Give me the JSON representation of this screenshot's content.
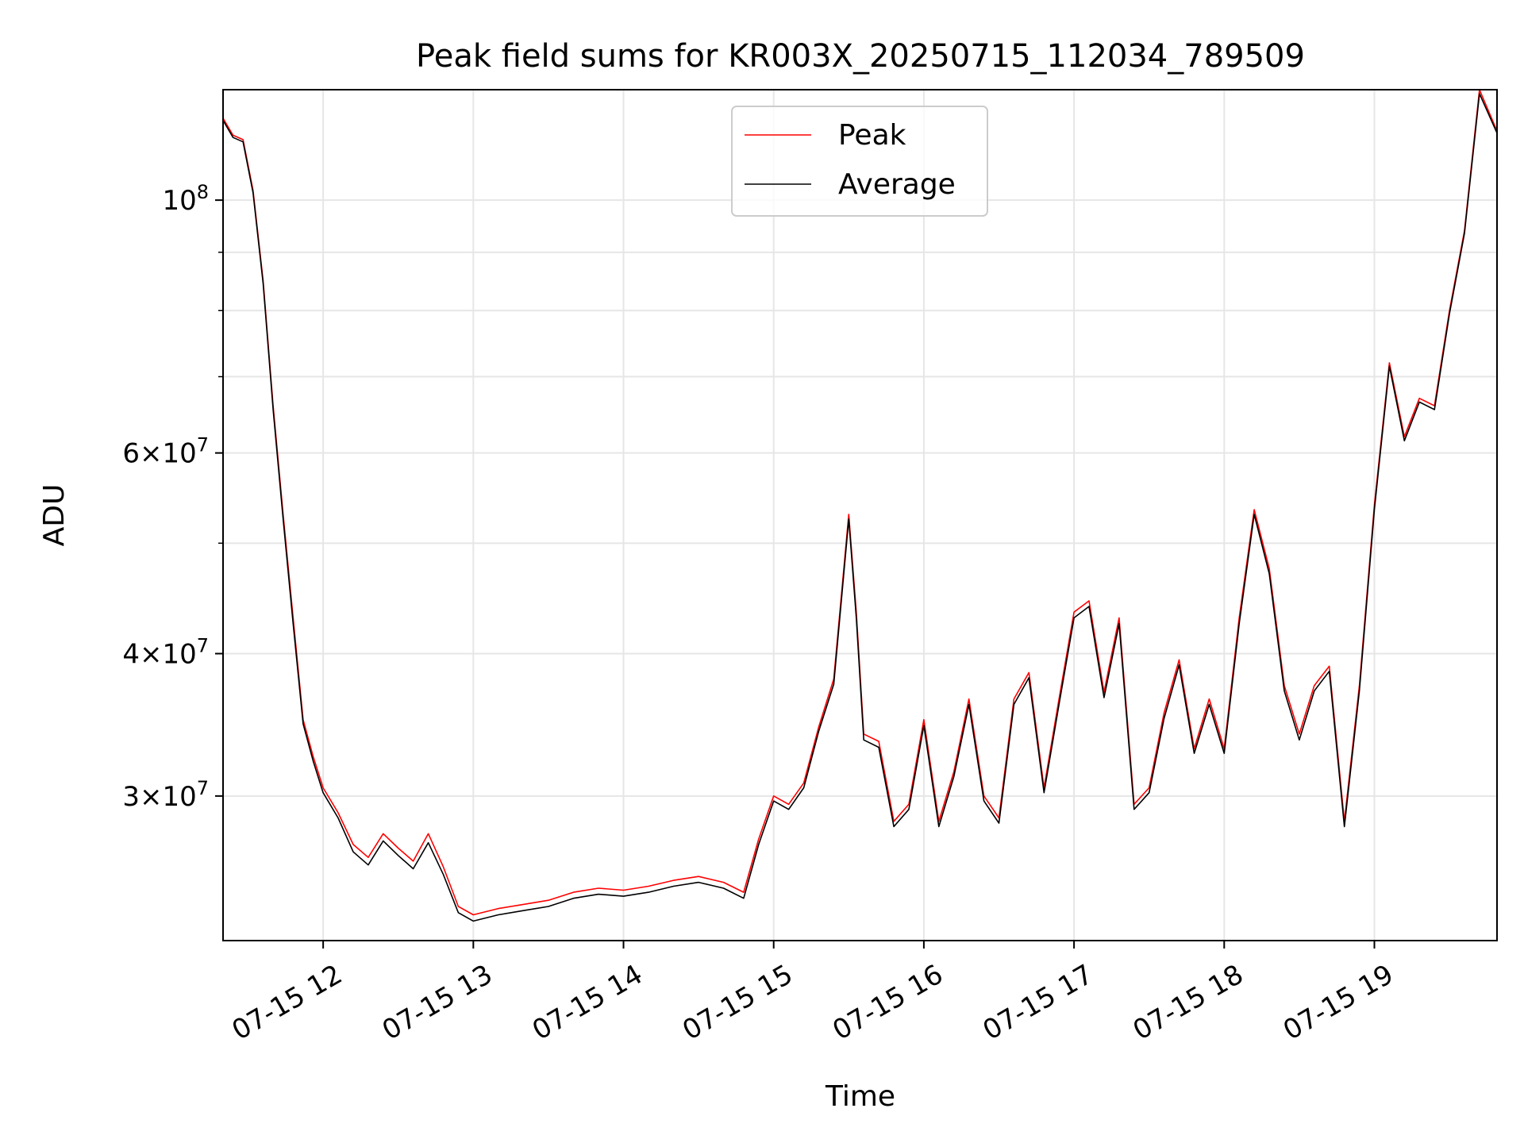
{
  "chart_data": {
    "type": "line",
    "title": "Peak field sums for KR003X_20250715_112034_789509",
    "xlabel": "Time",
    "ylabel": "ADU",
    "yscale": "log",
    "xlim": [
      "2025-07-15 11:20",
      "2025-07-15 19:49"
    ],
    "ylim": [
      22400000,
      125000000
    ],
    "grid": true,
    "legend_position": "top-center",
    "x_ticks": [
      {
        "value": "2025-07-15 12:00",
        "label": "07-15 12"
      },
      {
        "value": "2025-07-15 13:00",
        "label": "07-15 13"
      },
      {
        "value": "2025-07-15 14:00",
        "label": "07-15 14"
      },
      {
        "value": "2025-07-15 15:00",
        "label": "07-15 15"
      },
      {
        "value": "2025-07-15 16:00",
        "label": "07-15 16"
      },
      {
        "value": "2025-07-15 17:00",
        "label": "07-15 17"
      },
      {
        "value": "2025-07-15 18:00",
        "label": "07-15 18"
      },
      {
        "value": "2025-07-15 19:00",
        "label": "07-15 19"
      }
    ],
    "y_ticks": [
      {
        "value": 30000000,
        "mantissa": "3",
        "exponent": "7"
      },
      {
        "value": 40000000,
        "mantissa": "4",
        "exponent": "7"
      },
      {
        "value": 60000000,
        "mantissa": "6",
        "exponent": "7"
      },
      {
        "value": 100000000,
        "mantissa": "",
        "exponent": "8"
      }
    ],
    "y_minor_ticks": [
      50000000,
      70000000,
      80000000,
      90000000
    ],
    "series": [
      {
        "name": "Peak",
        "color": "#ff0000",
        "x": [
          "2025-07-15 11:20",
          "2025-07-15 11:24",
          "2025-07-15 11:28",
          "2025-07-15 11:32",
          "2025-07-15 11:36",
          "2025-07-15 11:40",
          "2025-07-15 11:44",
          "2025-07-15 11:48",
          "2025-07-15 11:52",
          "2025-07-15 11:56",
          "2025-07-15 12:00",
          "2025-07-15 12:06",
          "2025-07-15 12:12",
          "2025-07-15 12:18",
          "2025-07-15 12:24",
          "2025-07-15 12:30",
          "2025-07-15 12:36",
          "2025-07-15 12:42",
          "2025-07-15 12:48",
          "2025-07-15 12:54",
          "2025-07-15 13:00",
          "2025-07-15 13:10",
          "2025-07-15 13:20",
          "2025-07-15 13:30",
          "2025-07-15 13:40",
          "2025-07-15 13:50",
          "2025-07-15 14:00",
          "2025-07-15 14:10",
          "2025-07-15 14:20",
          "2025-07-15 14:30",
          "2025-07-15 14:40",
          "2025-07-15 14:48",
          "2025-07-15 14:54",
          "2025-07-15 15:00",
          "2025-07-15 15:06",
          "2025-07-15 15:12",
          "2025-07-15 15:18",
          "2025-07-15 15:24",
          "2025-07-15 15:30",
          "2025-07-15 15:33",
          "2025-07-15 15:36",
          "2025-07-15 15:42",
          "2025-07-15 15:48",
          "2025-07-15 15:54",
          "2025-07-15 16:00",
          "2025-07-15 16:06",
          "2025-07-15 16:12",
          "2025-07-15 16:18",
          "2025-07-15 16:24",
          "2025-07-15 16:30",
          "2025-07-15 16:36",
          "2025-07-15 16:42",
          "2025-07-15 16:48",
          "2025-07-15 16:54",
          "2025-07-15 17:00",
          "2025-07-15 17:06",
          "2025-07-15 17:12",
          "2025-07-15 17:18",
          "2025-07-15 17:24",
          "2025-07-15 17:30",
          "2025-07-15 17:36",
          "2025-07-15 17:42",
          "2025-07-15 17:48",
          "2025-07-15 17:54",
          "2025-07-15 18:00",
          "2025-07-15 18:06",
          "2025-07-15 18:12",
          "2025-07-15 18:18",
          "2025-07-15 18:24",
          "2025-07-15 18:30",
          "2025-07-15 18:36",
          "2025-07-15 18:42",
          "2025-07-15 18:48",
          "2025-07-15 18:54",
          "2025-07-15 19:00",
          "2025-07-15 19:06",
          "2025-07-15 19:12",
          "2025-07-15 19:18",
          "2025-07-15 19:24",
          "2025-07-15 19:30",
          "2025-07-15 19:36",
          "2025-07-15 19:42",
          "2025-07-15 19:49"
        ],
        "values": [
          118000000,
          114000000,
          113000000,
          102000000,
          85000000,
          66000000,
          53000000,
          43000000,
          35000000,
          32500000,
          30500000,
          29000000,
          27200000,
          26500000,
          27800000,
          27000000,
          26300000,
          27800000,
          26000000,
          24000000,
          23600000,
          23900000,
          24100000,
          24300000,
          24700000,
          24900000,
          24800000,
          25000000,
          25300000,
          25500000,
          25200000,
          24700000,
          27500000,
          30000000,
          29500000,
          30800000,
          34500000,
          38000000,
          53000000,
          43500000,
          34000000,
          33500000,
          28500000,
          29500000,
          35000000,
          28500000,
          31500000,
          36500000,
          30000000,
          28700000,
          36500000,
          38500000,
          30500000,
          36500000,
          43500000,
          44500000,
          37000000,
          43000000,
          29500000,
          30500000,
          35500000,
          39500000,
          33000000,
          36500000,
          33000000,
          43000000,
          53500000,
          47500000,
          37500000,
          34000000,
          37500000,
          39000000,
          28500000,
          37500000,
          54000000,
          72000000,
          62000000,
          67000000,
          66000000,
          80000000,
          94000000,
          125000000,
          115000000
        ]
      },
      {
        "name": "Average",
        "color": "#000000",
        "x": [
          "2025-07-15 11:20",
          "2025-07-15 11:24",
          "2025-07-15 11:28",
          "2025-07-15 11:32",
          "2025-07-15 11:36",
          "2025-07-15 11:40",
          "2025-07-15 11:44",
          "2025-07-15 11:48",
          "2025-07-15 11:52",
          "2025-07-15 11:56",
          "2025-07-15 12:00",
          "2025-07-15 12:06",
          "2025-07-15 12:12",
          "2025-07-15 12:18",
          "2025-07-15 12:24",
          "2025-07-15 12:30",
          "2025-07-15 12:36",
          "2025-07-15 12:42",
          "2025-07-15 12:48",
          "2025-07-15 12:54",
          "2025-07-15 13:00",
          "2025-07-15 13:10",
          "2025-07-15 13:20",
          "2025-07-15 13:30",
          "2025-07-15 13:40",
          "2025-07-15 13:50",
          "2025-07-15 14:00",
          "2025-07-15 14:10",
          "2025-07-15 14:20",
          "2025-07-15 14:30",
          "2025-07-15 14:40",
          "2025-07-15 14:48",
          "2025-07-15 14:54",
          "2025-07-15 15:00",
          "2025-07-15 15:06",
          "2025-07-15 15:12",
          "2025-07-15 15:18",
          "2025-07-15 15:24",
          "2025-07-15 15:30",
          "2025-07-15 15:33",
          "2025-07-15 15:36",
          "2025-07-15 15:42",
          "2025-07-15 15:48",
          "2025-07-15 15:54",
          "2025-07-15 16:00",
          "2025-07-15 16:06",
          "2025-07-15 16:12",
          "2025-07-15 16:18",
          "2025-07-15 16:24",
          "2025-07-15 16:30",
          "2025-07-15 16:36",
          "2025-07-15 16:42",
          "2025-07-15 16:48",
          "2025-07-15 16:54",
          "2025-07-15 17:00",
          "2025-07-15 17:06",
          "2025-07-15 17:12",
          "2025-07-15 17:18",
          "2025-07-15 17:24",
          "2025-07-15 17:30",
          "2025-07-15 17:36",
          "2025-07-15 17:42",
          "2025-07-15 17:48",
          "2025-07-15 17:54",
          "2025-07-15 18:00",
          "2025-07-15 18:06",
          "2025-07-15 18:12",
          "2025-07-15 18:18",
          "2025-07-15 18:24",
          "2025-07-15 18:30",
          "2025-07-15 18:36",
          "2025-07-15 18:42",
          "2025-07-15 18:48",
          "2025-07-15 18:54",
          "2025-07-15 19:00",
          "2025-07-15 19:06",
          "2025-07-15 19:12",
          "2025-07-15 19:18",
          "2025-07-15 19:24",
          "2025-07-15 19:30",
          "2025-07-15 19:36",
          "2025-07-15 19:42",
          "2025-07-15 19:49"
        ],
        "values": [
          117500000,
          113500000,
          112500000,
          101500000,
          84500000,
          65500000,
          52500000,
          42500000,
          34700000,
          32200000,
          30200000,
          28700000,
          26800000,
          26100000,
          27400000,
          26600000,
          25900000,
          27300000,
          25600000,
          23700000,
          23300000,
          23600000,
          23800000,
          24000000,
          24400000,
          24600000,
          24500000,
          24700000,
          25000000,
          25200000,
          24900000,
          24400000,
          27200000,
          29700000,
          29200000,
          30500000,
          34200000,
          37600000,
          52500000,
          43000000,
          33600000,
          33100000,
          28200000,
          29200000,
          34600000,
          28200000,
          31200000,
          36100000,
          29700000,
          28400000,
          36100000,
          38100000,
          30200000,
          36100000,
          43000000,
          44000000,
          36600000,
          42500000,
          29200000,
          30200000,
          35100000,
          39100000,
          32700000,
          36100000,
          32700000,
          42500000,
          53000000,
          47000000,
          37100000,
          33600000,
          37100000,
          38600000,
          28200000,
          37100000,
          53500000,
          71500000,
          61500000,
          66500000,
          65500000,
          79500000,
          93500000,
          124000000,
          114500000
        ]
      }
    ]
  }
}
